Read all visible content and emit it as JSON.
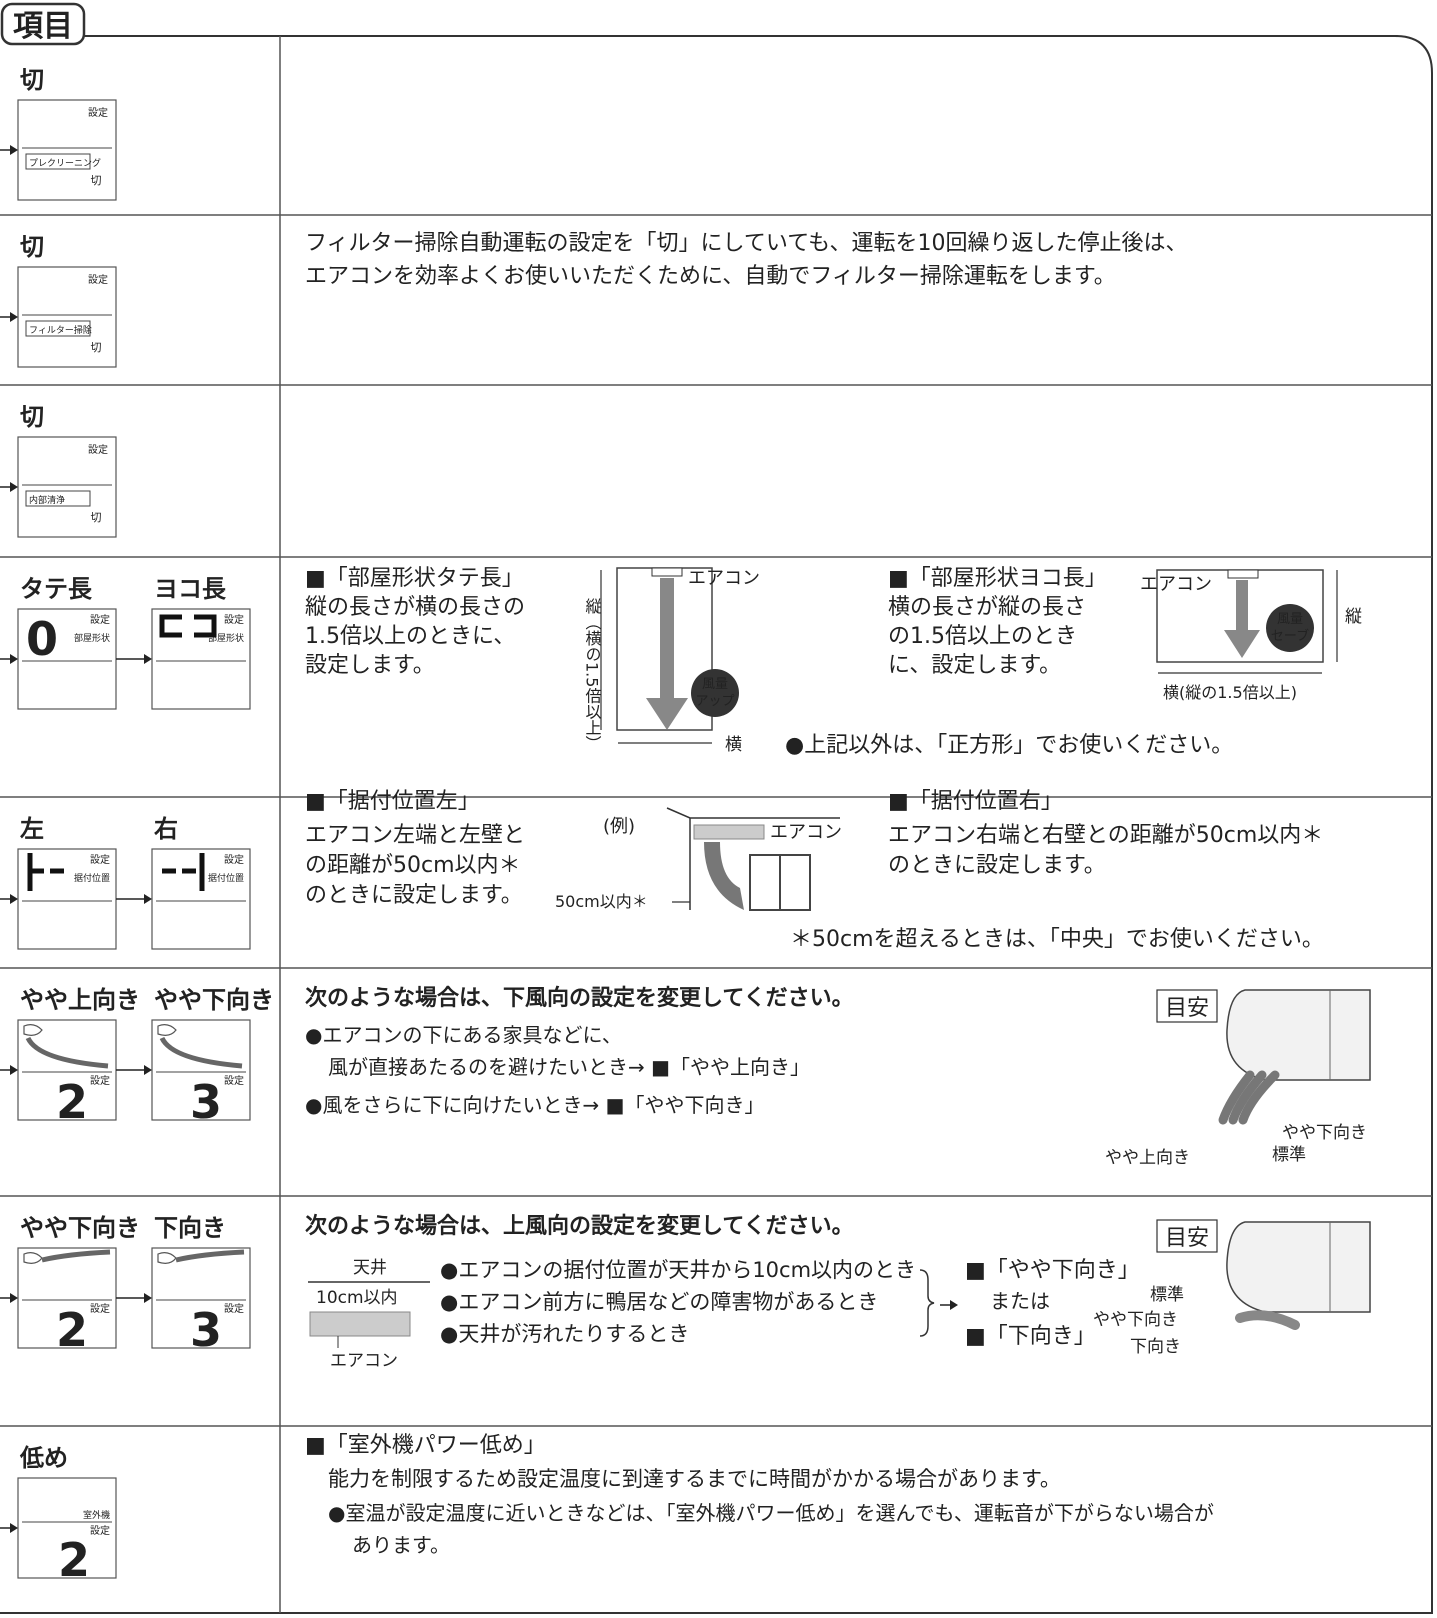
{
  "header": {
    "title": "項目"
  },
  "rows": [
    {
      "settings": [
        {
          "label": "切",
          "lcd": [
            "設定",
            "プレクリーニング",
            "切"
          ]
        }
      ]
    },
    {
      "settings": [
        {
          "label": "切",
          "lcd": [
            "設定",
            "フィルター掃除",
            "切"
          ]
        }
      ],
      "text": [
        "フィルター掃除自動運転の設定を「切」にしていても、運転を10回繰り返した停止後は、",
        "エアコンを効率よくお使いいただくために、自動でフィルター掃除運転をします。"
      ]
    },
    {
      "settings": [
        {
          "label": "切",
          "lcd": [
            "設定",
            "内部清浄",
            "切"
          ]
        }
      ]
    },
    {
      "settings": [
        {
          "label": "タテ長",
          "digit": "0",
          "lcd": [
            "設定",
            "部屋形状"
          ]
        },
        {
          "label": "ヨコ長",
          "lcd": [
            "設定",
            "部屋形状"
          ]
        }
      ],
      "left": {
        "heading": "■「部屋形状タテ長」",
        "text": [
          "縦の長さが横の長さの",
          "1.5倍以上のときに、",
          "設定します。"
        ],
        "height_label": "縦（横の1.5倍以上）",
        "unit_label": "エアコン",
        "badge": [
          "風量",
          "アップ"
        ],
        "width_label": "横"
      },
      "right": {
        "heading": "■「部屋形状ヨコ長」",
        "text": [
          "横の長さが縦の長さ",
          "の1.5倍以上のとき",
          "に、設定します。"
        ],
        "unit_label": "エアコン",
        "badge": [
          "風量",
          "セーブ"
        ],
        "height_label": "縦",
        "width_label": "横(縦の1.5倍以上)"
      },
      "note": "●上記以外は、「正方形」でお使いください。"
    },
    {
      "settings": [
        {
          "label": "左",
          "lcd": [
            "設定",
            "据付位置"
          ]
        },
        {
          "label": "右",
          "lcd": [
            "設定",
            "据付位置"
          ]
        }
      ],
      "left": {
        "heading": "■「据付位置左」",
        "text": [
          "エアコン左端と左壁と",
          "の距離が50cm以内＊",
          "のときに設定します。"
        ],
        "example": "(例)",
        "unit_label": "エアコン",
        "distance_label": "50cm以内＊"
      },
      "right": {
        "heading": "■「据付位置右」",
        "text": [
          "エアコン右端と右壁との距離が50cm以内＊",
          "のときに設定します。"
        ]
      },
      "note": "＊50cmを超えるときは、「中央」でお使いください。"
    },
    {
      "settings": [
        {
          "label": "やや上向き",
          "digit": "2",
          "lcd": [
            "設定"
          ]
        },
        {
          "label": "やや下向き",
          "digit": "3",
          "lcd": [
            "設定"
          ]
        }
      ],
      "heading": "次のような場合は、下風向の設定を変更してください。",
      "bullets": [
        "●エアコンの下にある家具などに、",
        "風が直接あたるのを避けたいとき→ ■「やや上向き」",
        "●風をさらに下に向けたいとき→ ■「やや下向き」"
      ],
      "guide": "目安",
      "positions": [
        "やや下向き",
        "標準",
        "やや上向き"
      ]
    },
    {
      "settings": [
        {
          "label": "やや下向き",
          "digit": "2",
          "lcd": [
            "設定"
          ]
        },
        {
          "label": "下向き",
          "digit": "3",
          "lcd": [
            "設定"
          ]
        }
      ],
      "heading": "次のような場合は、上風向の設定を変更してください。",
      "ceiling": "天井",
      "clearance": "10cm以内",
      "unit_label": "エアコン",
      "bullets": [
        "●エアコンの据付位置が天井から10cm以内のとき",
        "●エアコン前方に鴨居などの障害物があるとき",
        "●天井が汚れたりするとき"
      ],
      "results": [
        "■「やや下向き」",
        "または",
        "■「下向き」"
      ],
      "guide": "目安",
      "positions": [
        "標準",
        "やや下向き",
        "下向き"
      ]
    },
    {
      "settings": [
        {
          "label": "低め",
          "digit": "2",
          "lcd": [
            "室外機",
            "設定"
          ]
        }
      ],
      "heading": "■「室外機パワー低め」",
      "text": [
        "能力を制限するため設定温度に到達するまでに時間がかかる場合があります。"
      ],
      "bullets": [
        "●室温が設定温度に近いときなどは、「室外機パワー低め」を選んでも、運転音が下がらない場合が",
        "あります。"
      ]
    }
  ]
}
